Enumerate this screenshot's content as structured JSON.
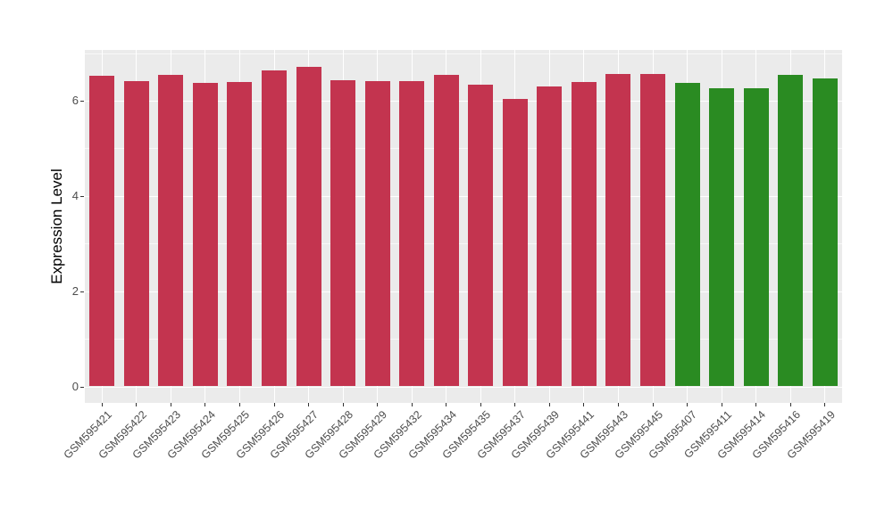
{
  "chart_data": {
    "type": "bar",
    "title": "",
    "xlabel": "",
    "ylabel": "Expression Level",
    "ylim": [
      0,
      7.08
    ],
    "ytick_labels": [
      "0",
      "2",
      "4",
      "6"
    ],
    "yticks_major": [
      0,
      2,
      4,
      6
    ],
    "yticks_minor": [
      1,
      3,
      5,
      7
    ],
    "grid": "on",
    "legend": "none",
    "panel_background": "#EBEBEB",
    "gridline_color": "#FFFFFF",
    "axis_text_color": "#4D4D4D",
    "categories": [
      "GSM595421",
      "GSM595422",
      "GSM595423",
      "GSM595424",
      "GSM595425",
      "GSM595426",
      "GSM595427",
      "GSM595428",
      "GSM595429",
      "GSM595432",
      "GSM595434",
      "GSM595435",
      "GSM595437",
      "GSM595439",
      "GSM595441",
      "GSM595443",
      "GSM595445",
      "GSM595407",
      "GSM595411",
      "GSM595414",
      "GSM595416",
      "GSM595419"
    ],
    "values": [
      6.53,
      6.42,
      6.55,
      6.37,
      6.4,
      6.64,
      6.71,
      6.43,
      6.41,
      6.41,
      6.54,
      6.34,
      6.04,
      6.29,
      6.39,
      6.56,
      6.57,
      6.37,
      6.26,
      6.26,
      6.55,
      6.47
    ],
    "groups": [
      "a",
      "a",
      "a",
      "a",
      "a",
      "a",
      "a",
      "a",
      "a",
      "a",
      "a",
      "a",
      "a",
      "a",
      "a",
      "a",
      "a",
      "b",
      "b",
      "b",
      "b",
      "b"
    ],
    "group_colors": {
      "a": "#C3344F",
      "b": "#2A8B22"
    }
  }
}
